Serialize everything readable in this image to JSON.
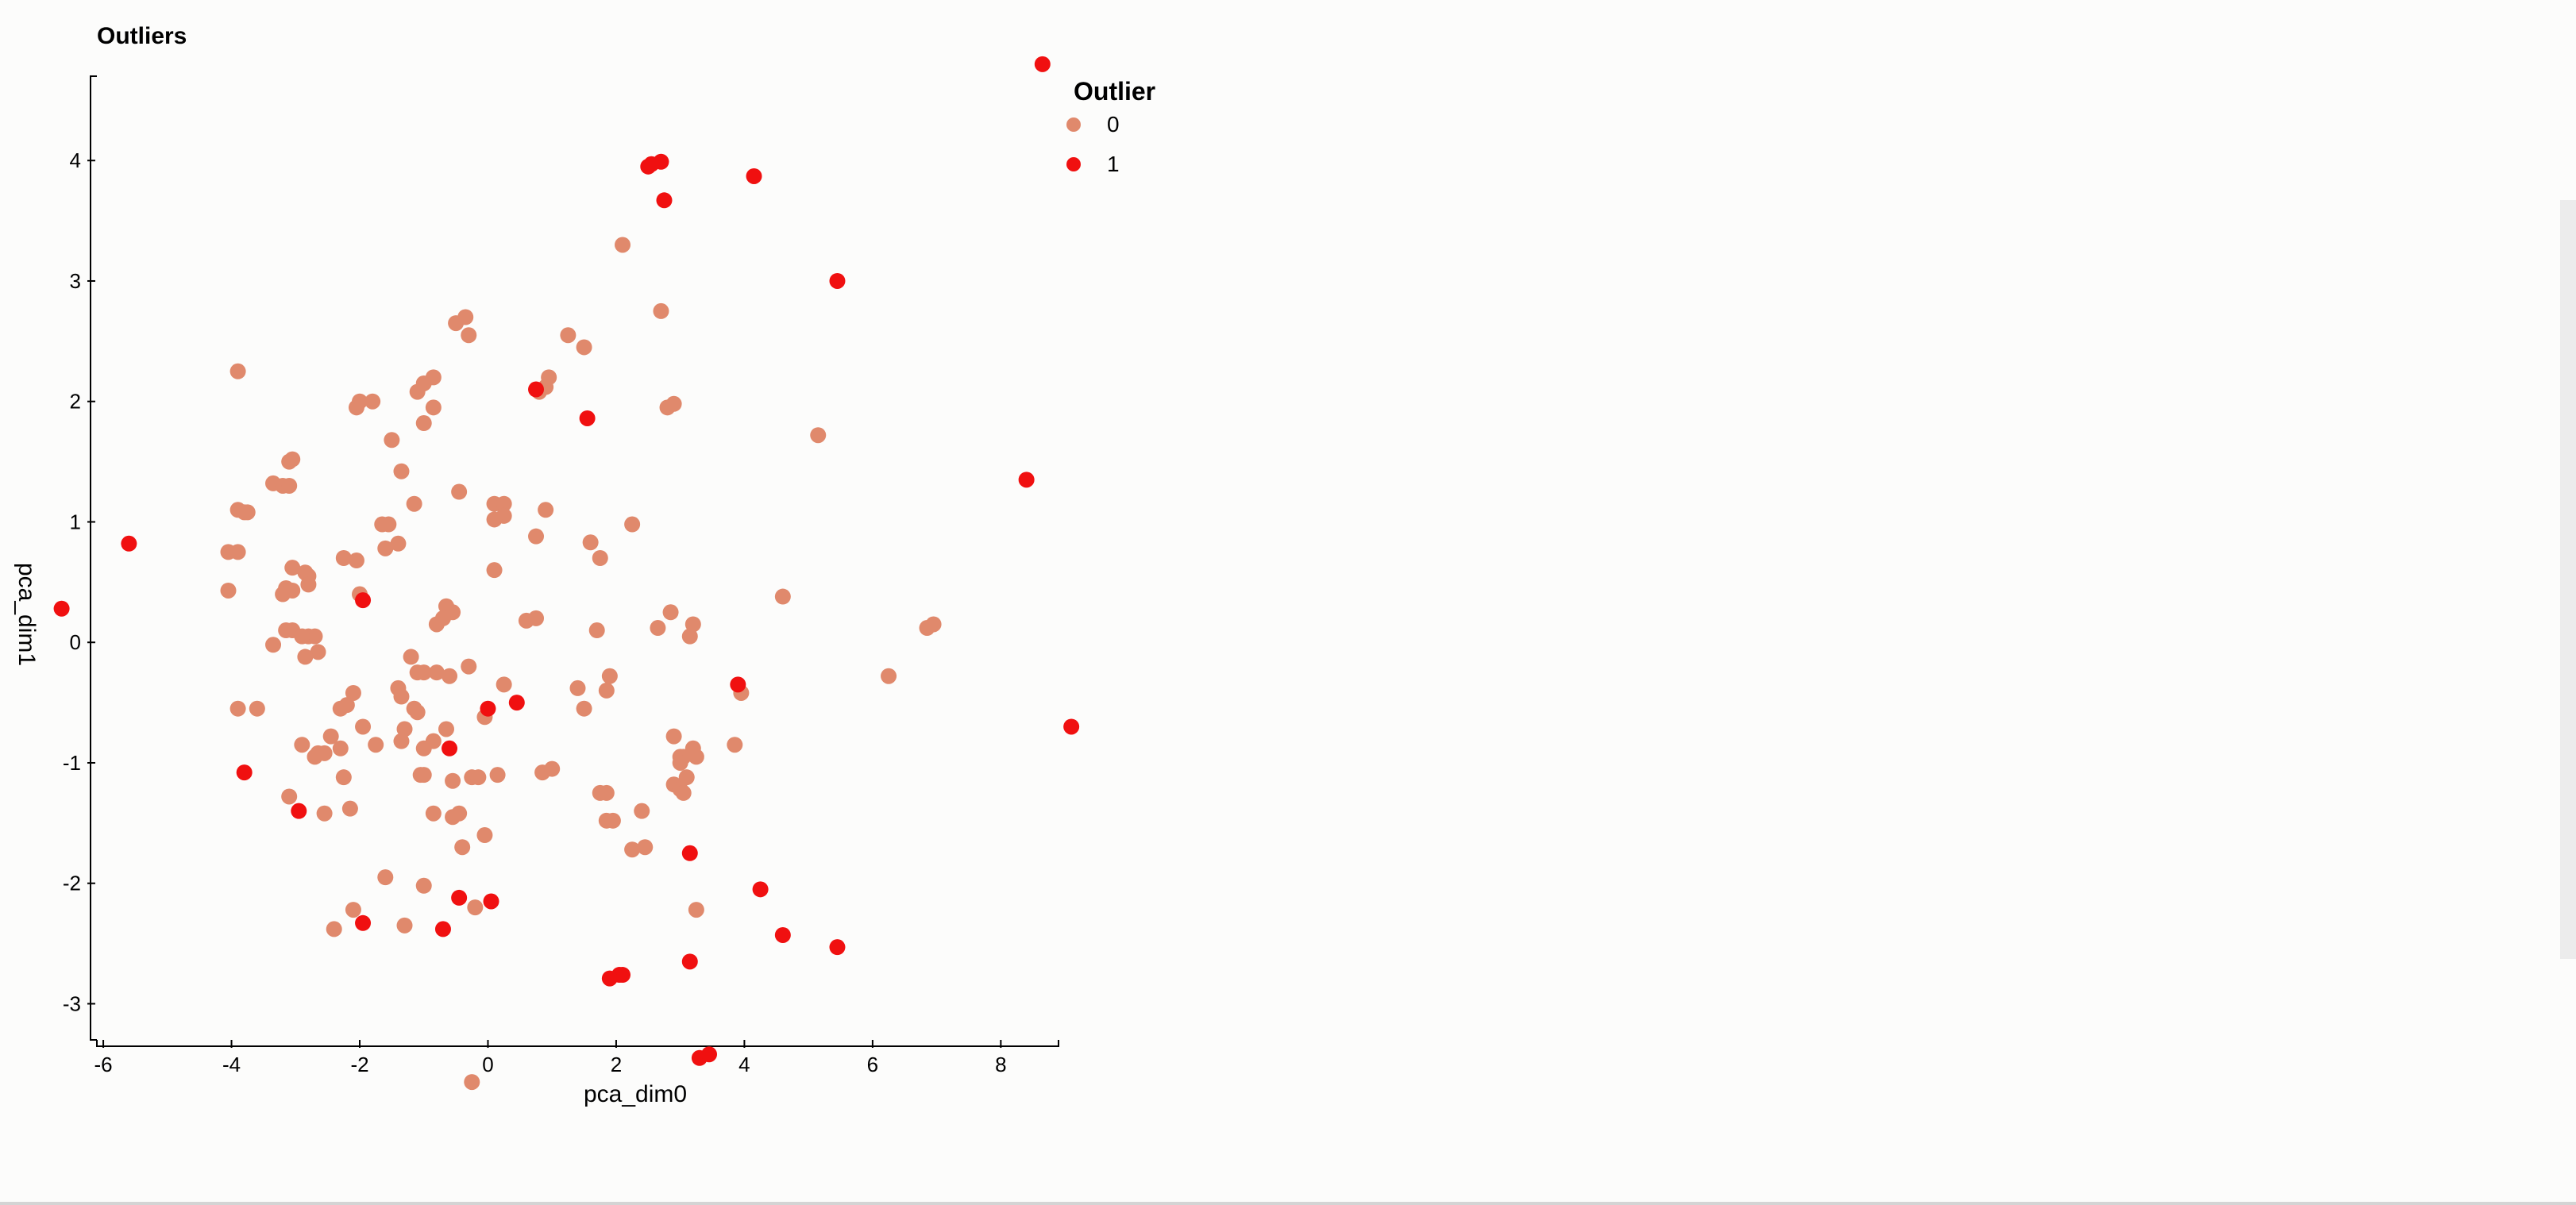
{
  "chart_data": {
    "type": "scatter",
    "title": "Outliers",
    "xlabel": "pca_dim0",
    "ylabel": "pca_dim1",
    "xlim": [
      -6.1,
      8.9
    ],
    "ylim": [
      -3.3,
      4.7
    ],
    "x_ticks": [
      -6,
      -4,
      -2,
      0,
      2,
      4,
      6,
      8
    ],
    "y_ticks": [
      -3,
      -2,
      -1,
      0,
      1,
      2,
      3,
      4
    ],
    "grid": false,
    "legend": {
      "title": "Outlier",
      "placement": "top-right",
      "entries": [
        {
          "label": "0",
          "color": "#e0896c"
        },
        {
          "label": "1",
          "color": "#f01010"
        }
      ]
    },
    "series": [
      {
        "name": "0",
        "color": "#e0896c",
        "points": [
          [
            2.1,
            3.3
          ],
          [
            2.7,
            2.75
          ],
          [
            -0.5,
            2.65
          ],
          [
            -0.35,
            2.7
          ],
          [
            -0.3,
            2.55
          ],
          [
            1.25,
            2.55
          ],
          [
            1.5,
            2.45
          ],
          [
            -3.9,
            2.25
          ],
          [
            -1.0,
            2.15
          ],
          [
            -0.85,
            2.2
          ],
          [
            -2.0,
            2.0
          ],
          [
            -1.8,
            2.0
          ],
          [
            -2.05,
            1.95
          ],
          [
            -0.85,
            1.95
          ],
          [
            -1.1,
            2.08
          ],
          [
            0.8,
            2.08
          ],
          [
            0.9,
            2.12
          ],
          [
            0.95,
            2.2
          ],
          [
            2.8,
            1.95
          ],
          [
            2.9,
            1.98
          ],
          [
            -1.0,
            1.82
          ],
          [
            5.15,
            1.72
          ],
          [
            -1.5,
            1.68
          ],
          [
            -3.1,
            1.5
          ],
          [
            -3.05,
            1.52
          ],
          [
            -1.35,
            1.42
          ],
          [
            -3.35,
            1.32
          ],
          [
            -3.2,
            1.3
          ],
          [
            -3.1,
            1.3
          ],
          [
            -0.45,
            1.25
          ],
          [
            0.1,
            1.15
          ],
          [
            0.25,
            1.15
          ],
          [
            0.25,
            1.05
          ],
          [
            -1.15,
            1.15
          ],
          [
            0.9,
            1.1
          ],
          [
            -3.9,
            1.1
          ],
          [
            -3.8,
            1.08
          ],
          [
            -3.75,
            1.08
          ],
          [
            0.1,
            1.02
          ],
          [
            2.25,
            0.98
          ],
          [
            -1.65,
            0.98
          ],
          [
            -1.55,
            0.98
          ],
          [
            -4.05,
            0.75
          ],
          [
            -3.9,
            0.75
          ],
          [
            -1.4,
            0.82
          ],
          [
            -1.6,
            0.78
          ],
          [
            0.75,
            0.88
          ],
          [
            1.6,
            0.83
          ],
          [
            1.75,
            0.7
          ],
          [
            -2.25,
            0.7
          ],
          [
            -2.05,
            0.68
          ],
          [
            -3.05,
            0.62
          ],
          [
            -2.85,
            0.58
          ],
          [
            -2.8,
            0.55
          ],
          [
            -2.8,
            0.48
          ],
          [
            0.1,
            0.6
          ],
          [
            -3.15,
            0.45
          ],
          [
            -3.05,
            0.43
          ],
          [
            -4.05,
            0.43
          ],
          [
            -3.2,
            0.4
          ],
          [
            -2.0,
            0.4
          ],
          [
            -0.65,
            0.3
          ],
          [
            -0.55,
            0.25
          ],
          [
            -0.7,
            0.2
          ],
          [
            -0.8,
            0.15
          ],
          [
            0.6,
            0.18
          ],
          [
            0.75,
            0.2
          ],
          [
            2.85,
            0.25
          ],
          [
            4.6,
            0.38
          ],
          [
            -3.15,
            0.1
          ],
          [
            -3.05,
            0.1
          ],
          [
            -2.8,
            0.05
          ],
          [
            -2.7,
            0.05
          ],
          [
            -2.9,
            0.05
          ],
          [
            1.7,
            0.1
          ],
          [
            2.65,
            0.12
          ],
          [
            3.15,
            0.05
          ],
          [
            3.2,
            0.15
          ],
          [
            6.85,
            0.12
          ],
          [
            6.95,
            0.15
          ],
          [
            -3.35,
            -0.02
          ],
          [
            -2.65,
            -0.08
          ],
          [
            -2.85,
            -0.12
          ],
          [
            -1.2,
            -0.12
          ],
          [
            -1.0,
            -0.25
          ],
          [
            -1.1,
            -0.25
          ],
          [
            -0.8,
            -0.25
          ],
          [
            -0.6,
            -0.28
          ],
          [
            -0.3,
            -0.2
          ],
          [
            -1.4,
            -0.38
          ],
          [
            -1.35,
            -0.45
          ],
          [
            0.25,
            -0.35
          ],
          [
            1.4,
            -0.38
          ],
          [
            1.9,
            -0.28
          ],
          [
            1.85,
            -0.4
          ],
          [
            6.25,
            -0.28
          ],
          [
            3.95,
            -0.42
          ],
          [
            -2.1,
            -0.42
          ],
          [
            -3.9,
            -0.55
          ],
          [
            -3.6,
            -0.55
          ],
          [
            -2.3,
            -0.55
          ],
          [
            -2.2,
            -0.52
          ],
          [
            -1.15,
            -0.55
          ],
          [
            -1.1,
            -0.58
          ],
          [
            -0.05,
            -0.62
          ],
          [
            1.5,
            -0.55
          ],
          [
            -1.95,
            -0.7
          ],
          [
            -1.3,
            -0.72
          ],
          [
            -0.65,
            -0.72
          ],
          [
            -2.45,
            -0.78
          ],
          [
            -2.3,
            -0.88
          ],
          [
            -2.9,
            -0.85
          ],
          [
            -2.65,
            -0.92
          ],
          [
            -2.55,
            -0.92
          ],
          [
            -2.7,
            -0.95
          ],
          [
            -1.75,
            -0.85
          ],
          [
            -1.35,
            -0.82
          ],
          [
            -1.0,
            -0.88
          ],
          [
            -0.85,
            -0.82
          ],
          [
            3.85,
            -0.85
          ],
          [
            2.9,
            -0.78
          ],
          [
            3.0,
            -0.95
          ],
          [
            3.05,
            -0.95
          ],
          [
            3.2,
            -0.88
          ],
          [
            3.25,
            -0.95
          ],
          [
            3.0,
            -1.0
          ],
          [
            -1.05,
            -1.1
          ],
          [
            -1.0,
            -1.1
          ],
          [
            -0.55,
            -1.15
          ],
          [
            -0.25,
            -1.12
          ],
          [
            -0.15,
            -1.12
          ],
          [
            0.15,
            -1.1
          ],
          [
            0.85,
            -1.08
          ],
          [
            1.0,
            -1.05
          ],
          [
            3.1,
            -1.12
          ],
          [
            2.9,
            -1.18
          ],
          [
            3.0,
            -1.22
          ],
          [
            3.05,
            -1.25
          ],
          [
            -2.25,
            -1.12
          ],
          [
            -3.1,
            -1.28
          ],
          [
            1.75,
            -1.25
          ],
          [
            1.85,
            -1.25
          ],
          [
            -2.55,
            -1.42
          ],
          [
            -2.15,
            -1.38
          ],
          [
            -0.85,
            -1.42
          ],
          [
            -0.55,
            -1.45
          ],
          [
            -0.45,
            -1.42
          ],
          [
            1.85,
            -1.48
          ],
          [
            1.95,
            -1.48
          ],
          [
            2.4,
            -1.4
          ],
          [
            -0.05,
            -1.6
          ],
          [
            -0.4,
            -1.7
          ],
          [
            2.25,
            -1.72
          ],
          [
            2.45,
            -1.7
          ],
          [
            -1.6,
            -1.95
          ],
          [
            -1.0,
            -2.02
          ],
          [
            -2.1,
            -2.22
          ],
          [
            -0.2,
            -2.2
          ],
          [
            3.25,
            -2.22
          ],
          [
            -2.4,
            -2.38
          ],
          [
            -1.3,
            -2.35
          ],
          [
            -0.25,
            -3.65
          ]
        ]
      },
      {
        "name": "1",
        "color": "#f01010",
        "points": [
          [
            8.65,
            4.8
          ],
          [
            2.5,
            3.95
          ],
          [
            2.55,
            3.97
          ],
          [
            2.7,
            3.99
          ],
          [
            4.15,
            3.87
          ],
          [
            2.75,
            3.67
          ],
          [
            5.45,
            3.0
          ],
          [
            0.75,
            2.1
          ],
          [
            1.55,
            1.86
          ],
          [
            8.4,
            1.35
          ],
          [
            -5.6,
            0.82
          ],
          [
            -6.65,
            0.28
          ],
          [
            -1.95,
            0.35
          ],
          [
            3.9,
            -0.35
          ],
          [
            0.45,
            -0.5
          ],
          [
            0.0,
            -0.55
          ],
          [
            9.1,
            -0.7
          ],
          [
            -0.6,
            -0.88
          ],
          [
            -3.8,
            -1.08
          ],
          [
            -2.95,
            -1.4
          ],
          [
            3.15,
            -1.75
          ],
          [
            4.25,
            -2.05
          ],
          [
            0.05,
            -2.15
          ],
          [
            -0.45,
            -2.12
          ],
          [
            -1.95,
            -2.33
          ],
          [
            -0.7,
            -2.38
          ],
          [
            4.6,
            -2.43
          ],
          [
            5.45,
            -2.53
          ],
          [
            3.15,
            -2.65
          ],
          [
            2.1,
            -2.76
          ],
          [
            2.05,
            -2.76
          ],
          [
            1.9,
            -2.79
          ],
          [
            3.3,
            -3.45
          ],
          [
            3.45,
            -3.42
          ]
        ]
      }
    ]
  }
}
